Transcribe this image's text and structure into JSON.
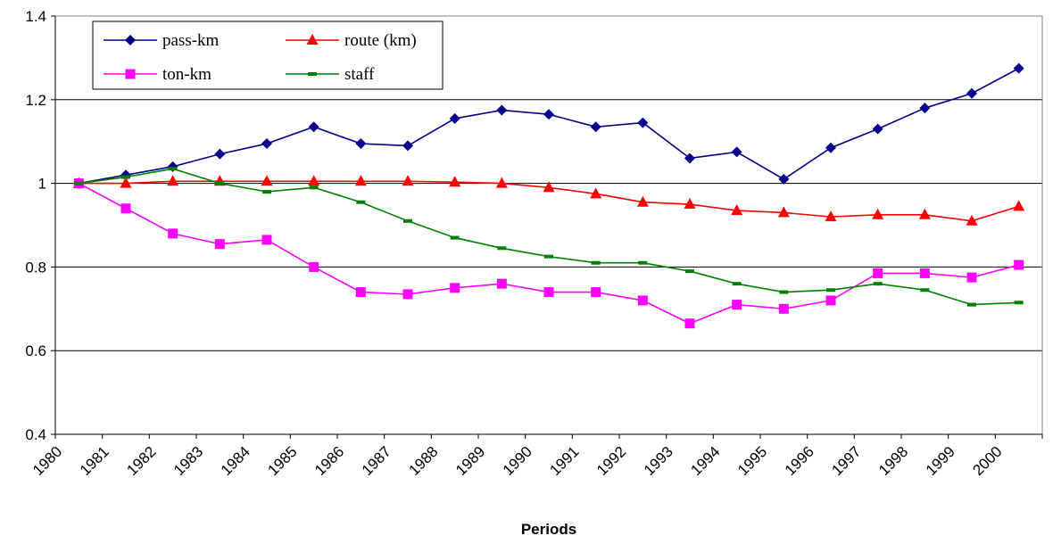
{
  "chart_data": {
    "type": "line",
    "title": "",
    "xlabel": "Periods",
    "ylabel": "",
    "ylim": [
      0.4,
      1.4
    ],
    "yticks": [
      "0.4",
      "0.6",
      "0.8",
      "1",
      "1.2",
      "1.4"
    ],
    "categories": [
      "1980",
      "1981",
      "1982",
      "1983",
      "1984",
      "1985",
      "1986",
      "1987",
      "1988",
      "1989",
      "1990",
      "1991",
      "1992",
      "1993",
      "1994",
      "1995",
      "1996",
      "1997",
      "1998",
      "1999",
      "2000"
    ],
    "grid": "horizontal",
    "legend_position": "top-left",
    "series": [
      {
        "name": "pass-km",
        "color": "#00008b",
        "marker": "diamond",
        "values": [
          1.0,
          1.02,
          1.04,
          1.07,
          1.095,
          1.135,
          1.095,
          1.09,
          1.155,
          1.175,
          1.165,
          1.135,
          1.145,
          1.06,
          1.075,
          1.01,
          1.085,
          1.13,
          1.18,
          1.215,
          1.275
        ]
      },
      {
        "name": "route (km)",
        "color": "#ff0000",
        "marker": "triangle",
        "values": [
          1.0,
          1.0,
          1.005,
          1.005,
          1.005,
          1.005,
          1.005,
          1.005,
          1.003,
          1.0,
          0.99,
          0.975,
          0.955,
          0.95,
          0.935,
          0.93,
          0.92,
          0.925,
          0.925,
          0.91,
          0.945
        ]
      },
      {
        "name": "ton-km",
        "color": "#ff00ff",
        "marker": "square",
        "values": [
          1.0,
          0.94,
          0.88,
          0.855,
          0.865,
          0.8,
          0.74,
          0.735,
          0.75,
          0.76,
          0.74,
          0.74,
          0.72,
          0.665,
          0.71,
          0.7,
          0.72,
          0.785,
          0.785,
          0.775,
          0.805
        ]
      },
      {
        "name": "staff",
        "color": "#008000",
        "marker": "dash",
        "values": [
          1.0,
          1.015,
          1.035,
          1.0,
          0.98,
          0.99,
          0.955,
          0.91,
          0.87,
          0.845,
          0.825,
          0.81,
          0.81,
          0.79,
          0.76,
          0.74,
          0.745,
          0.76,
          0.745,
          0.71,
          0.715
        ]
      }
    ]
  }
}
